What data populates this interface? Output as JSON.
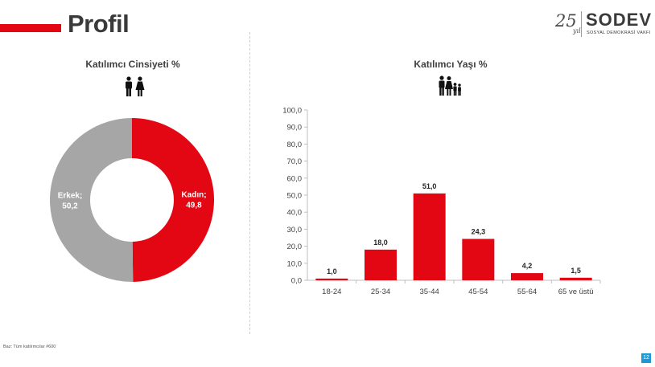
{
  "page": {
    "title": "Profil",
    "page_number": "12",
    "footnote": "Baz: Tüm katılımcılar #600"
  },
  "logo": {
    "number": "25",
    "yil": "yıl",
    "name": "SODEV",
    "subtitle": "SOSYAL DEMOKRASİ VAKFI"
  },
  "colors": {
    "accent": "#e30613",
    "grey": "#a6a6a6",
    "page_badge": "#1c9ad6"
  },
  "icons": {
    "gender": "man-woman-icon",
    "age": "family-icon"
  },
  "chart_data": [
    {
      "type": "pie",
      "title": "Katılımcı Cinsiyeti %",
      "donut": true,
      "slices": [
        {
          "name": "Kadın",
          "value": 49.8,
          "label_line1": "Kadın;",
          "label_line2": "49,8",
          "color": "#e30613"
        },
        {
          "name": "Erkek",
          "value": 50.2,
          "label_line1": "Erkek;",
          "label_line2": "50,2",
          "color": "#a6a6a6"
        }
      ]
    },
    {
      "type": "bar",
      "title": "Katılımcı Yaşı %",
      "categories": [
        "18-24",
        "25-34",
        "35-44",
        "45-54",
        "55-64",
        "65 ve üstü"
      ],
      "values": [
        1.0,
        18.0,
        51.0,
        24.3,
        4.2,
        1.5
      ],
      "value_labels": [
        "1,0",
        "18,0",
        "51,0",
        "24,3",
        "4,2",
        "1,5"
      ],
      "ylim": [
        0,
        100
      ],
      "yticks": [
        "0,0",
        "10,0",
        "20,0",
        "30,0",
        "40,0",
        "50,0",
        "60,0",
        "70,0",
        "80,0",
        "90,0",
        "100,0"
      ],
      "xlabel": "",
      "ylabel": "",
      "bar_color": "#e30613",
      "grid": false
    }
  ]
}
